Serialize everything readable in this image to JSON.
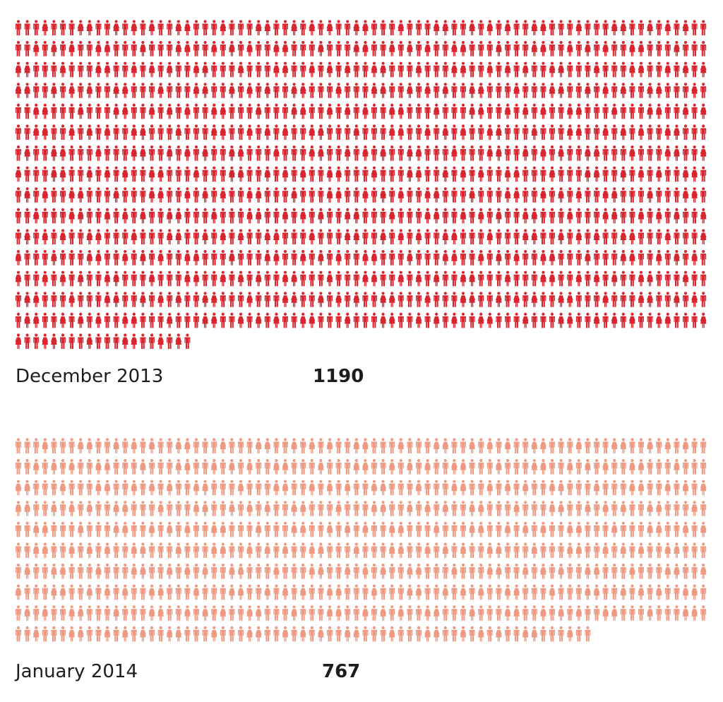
{
  "chart_data": {
    "type": "pictogram",
    "unit": "person-icon",
    "series": [
      {
        "label": "December 2013",
        "value": 1190,
        "color": "#d7262f"
      },
      {
        "label": "January 2014",
        "value": 767,
        "color": "#ee9a83"
      }
    ]
  }
}
